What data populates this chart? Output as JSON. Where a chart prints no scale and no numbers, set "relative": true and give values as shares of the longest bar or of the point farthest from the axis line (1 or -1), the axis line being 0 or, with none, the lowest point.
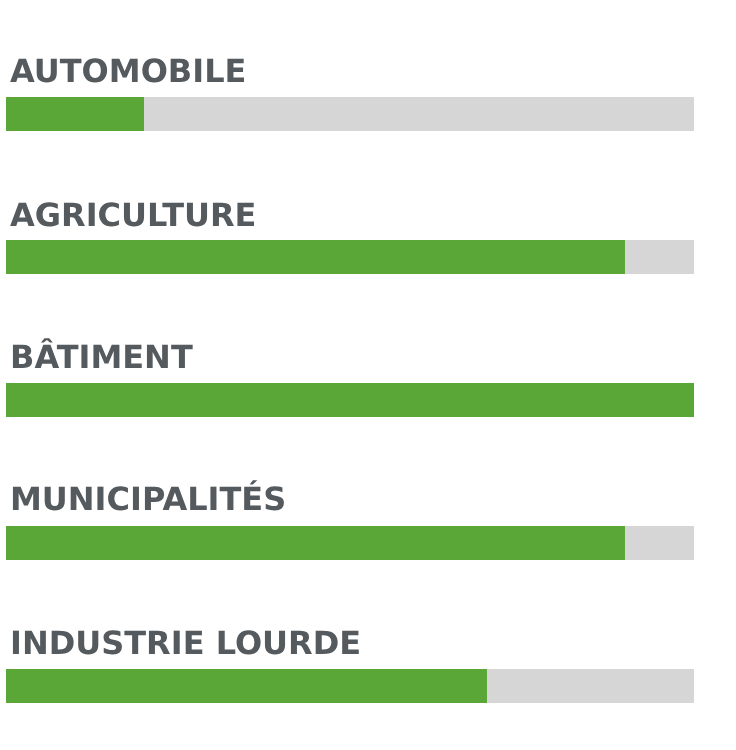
{
  "chart_data": {
    "type": "bar",
    "orientation": "horizontal",
    "stacked": true,
    "relative": true,
    "categories": [
      "AUTOMOBILE",
      "AGRICULTURE",
      "BÂTIMENT",
      "MUNICIPALITÉS",
      "INDUSTRIE LOURDE"
    ],
    "series": [
      {
        "color": "#5aa636",
        "values": [
          0.2,
          0.9,
          1,
          0.9,
          0.7
        ]
      },
      {
        "color": "#d6d6d6",
        "values": [
          0.8,
          0.1,
          0,
          0.1,
          0.3
        ]
      }
    ]
  }
}
